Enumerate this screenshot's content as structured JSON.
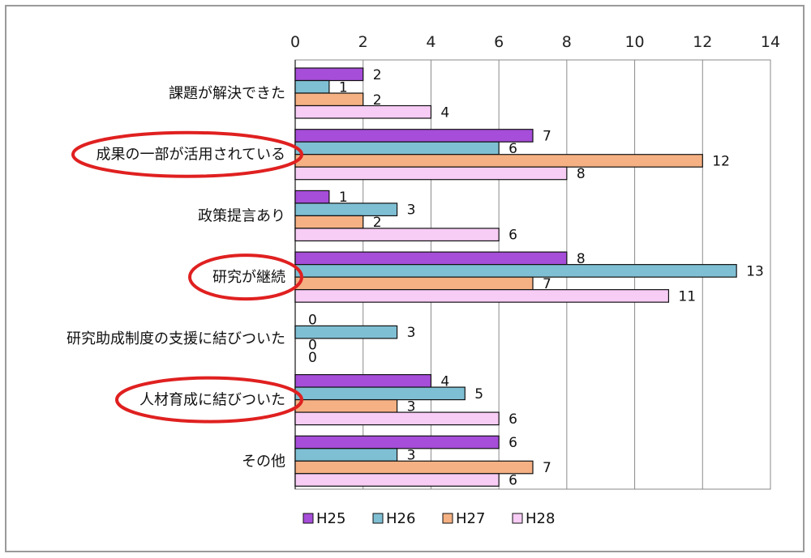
{
  "chart_data": {
    "type": "bar",
    "orientation": "horizontal",
    "categories": [
      "課題が解決できた",
      "成果の一部が活用されている",
      "政策提言あり",
      "研究が継続",
      "研究助成制度の支援に結びついた",
      "人材育成に結びついた",
      "その他"
    ],
    "series": [
      {
        "name": "H25",
        "color": "#a64dd9",
        "values": [
          2,
          7,
          1,
          8,
          0,
          4,
          6
        ]
      },
      {
        "name": "H26",
        "color": "#7fbfd4",
        "values": [
          1,
          6,
          3,
          13,
          3,
          5,
          3
        ]
      },
      {
        "name": "H27",
        "color": "#f5b183",
        "values": [
          2,
          12,
          2,
          7,
          0,
          3,
          7
        ]
      },
      {
        "name": "H28",
        "color": "#f7ccf5",
        "values": [
          4,
          8,
          6,
          11,
          0,
          6,
          6
        ]
      }
    ],
    "xlim": [
      0,
      14
    ],
    "x_ticks": [
      0,
      2,
      4,
      6,
      8,
      10,
      12,
      14
    ],
    "x_axis_position": "top",
    "grid": true,
    "legend_position": "bottom",
    "highlighted_categories": [
      "成果の一部が活用されている",
      "研究が継続",
      "人材育成に結びついた"
    ],
    "highlight_color": "#e02020"
  }
}
